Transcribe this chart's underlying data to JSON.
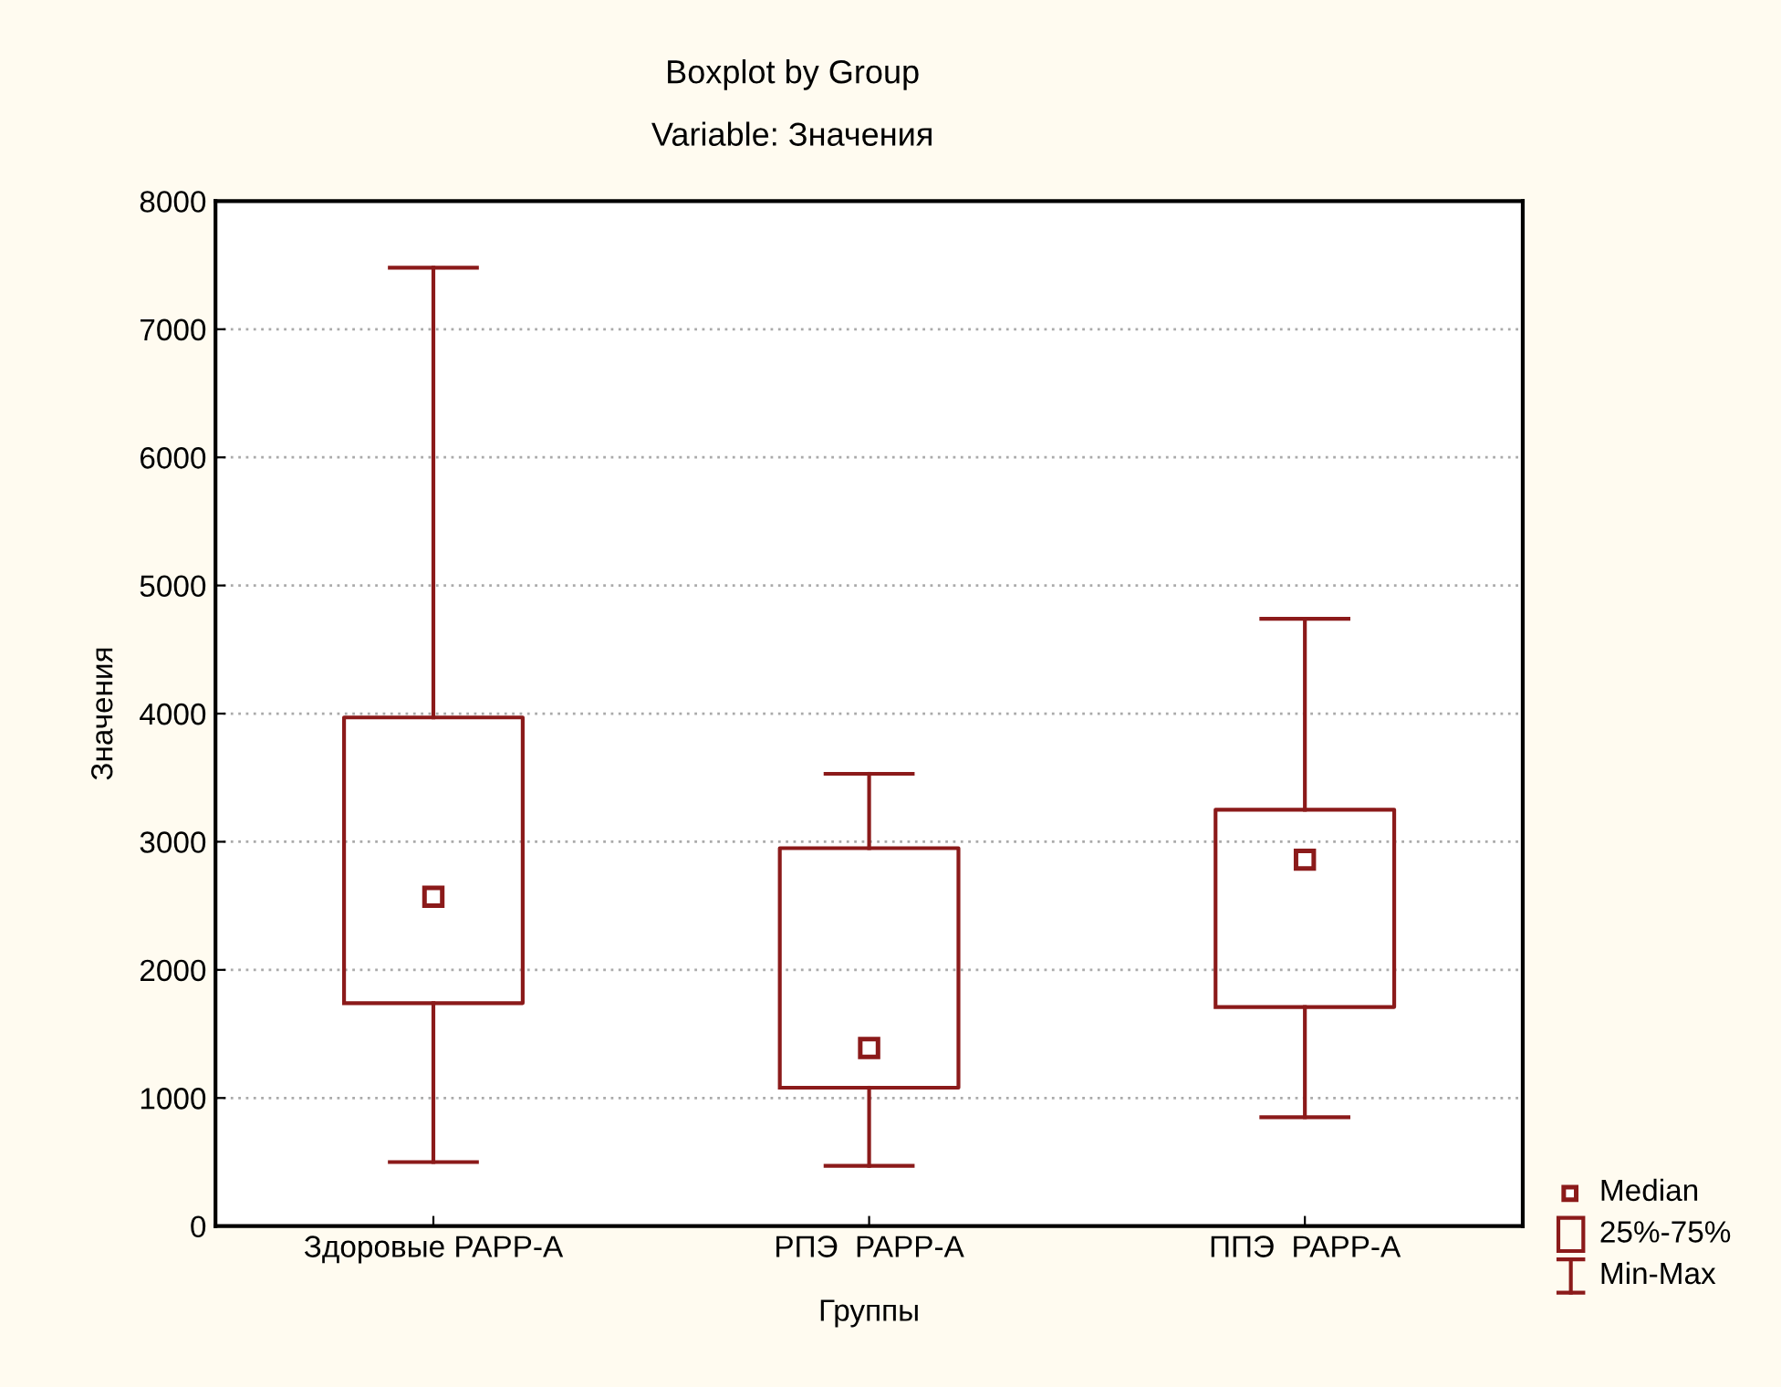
{
  "chart_data": {
    "type": "box",
    "title": "Boxplot by Group",
    "subtitle": "Variable: Значения",
    "xlabel": "Группы",
    "ylabel": "Значения",
    "categories": [
      "Здоровые PAPP-A",
      "РПЭ  PAPP-A",
      "ППЭ  PAPP-A"
    ],
    "series": [
      {
        "color": "#8b1a1a",
        "boxes": [
          {
            "low": 500,
            "q1": 1740,
            "median": 2570,
            "q3": 3970,
            "high": 7480
          },
          {
            "low": 470,
            "q1": 1080,
            "median": 1390,
            "q3": 2950,
            "high": 3530
          },
          {
            "low": 850,
            "q1": 1710,
            "median": 2860,
            "q3": 3250,
            "high": 4740
          }
        ]
      }
    ],
    "ylim": [
      0,
      8000
    ],
    "yticks": [
      0,
      1000,
      2000,
      3000,
      4000,
      5000,
      6000,
      7000,
      8000
    ],
    "grid": "y",
    "annotations": [
      "Median",
      "25%-75%",
      "Min-Max"
    ]
  }
}
